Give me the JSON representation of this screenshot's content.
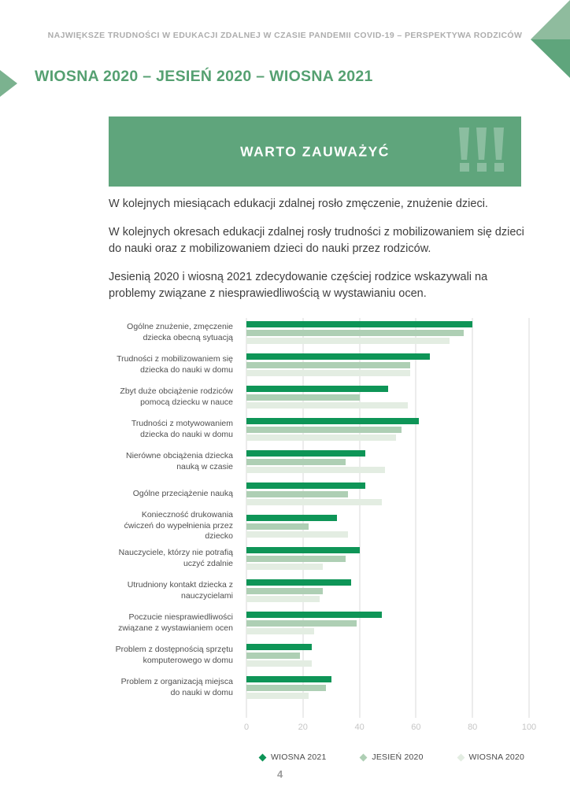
{
  "page": {
    "number": "4"
  },
  "header": {
    "title": "NAJWIĘKSZE TRUDNOŚCI W EDUKACJI ZDALNEJ W CZASIE PANDEMII COVID-19 – PERSPEKTYWA RODZICÓW"
  },
  "section": {
    "heading": "WIOSNA 2020 – JESIEŃ 2020 – WIOSNA 2021"
  },
  "banner": {
    "title": "WARTO ZAUWAŻYĆ",
    "exclamation": "!!!"
  },
  "paragraphs": [
    "W kolejnych miesiącach edukacji zdalnej rosło zmęczenie, znużenie dzieci.",
    "W kolejnych okresach edukacji zdalnej rosły trudności z mobilizowaniem się dzieci do nauki oraz z mobilizowaniem dzieci do nauki przez rodziców.",
    "Jesienią 2020 i wiosną 2021 zdecydowanie częściej rodzice wskazywali na problemy związane z niesprawiedliwością w wystawianiu ocen."
  ],
  "chart_data": {
    "type": "bar",
    "orientation": "horizontal",
    "categories": [
      "Ogólne znużenie, zmęczenie dziecka obecną sytuacją",
      "Trudności z mobilizowaniem się dziecka do nauki w domu",
      "Zbyt duże obciążenie rodziców pomocą dziecku w nauce",
      "Trudności z motywowaniem dziecka do nauki w domu",
      "Nierówne obciążenia dziecka nauką w czasie",
      "Ogólne przeciążenie nauką",
      "Konieczność drukowania ćwiczeń do wypełnienia przez dziecko",
      "Nauczyciele, którzy nie potrafią uczyć zdalnie",
      "Utrudniony kontakt dziecka z nauczycielami",
      "Poczucie niesprawiedliwości związane z wystawianiem ocen",
      "Problem z dostępnością sprzętu komputerowego w domu",
      "Problem z organizacją miejsca do nauki w domu"
    ],
    "series": [
      {
        "name": "WIOSNA 2021",
        "color": "#0e9557",
        "values": [
          80,
          65,
          50,
          61,
          42,
          42,
          32,
          40,
          37,
          48,
          23,
          30
        ]
      },
      {
        "name": "JESIEŃ 2020",
        "color": "#aecfb4",
        "values": [
          77,
          58,
          40,
          55,
          35,
          36,
          22,
          35,
          27,
          39,
          19,
          28
        ]
      },
      {
        "name": "WIOSNA 2020",
        "color": "#e3ede2",
        "values": [
          72,
          58,
          57,
          53,
          49,
          48,
          36,
          27,
          26,
          24,
          23,
          22
        ]
      }
    ],
    "xlim": [
      0,
      100
    ],
    "x_ticks": [
      0,
      20,
      40,
      60,
      80,
      100
    ],
    "grid": "vertical",
    "legend_position": "bottom"
  },
  "colors": {
    "banner_green": "#5fa57c",
    "heading_green": "#55a071",
    "corner_light_green": "#8fbc9e",
    "corner_dark_green": "#5fa57c",
    "gridline": "#d8d8d8",
    "tick_text": "#c6c6c6"
  }
}
